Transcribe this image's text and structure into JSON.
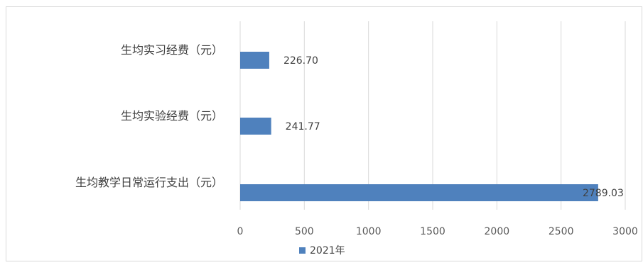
{
  "chart_data": {
    "type": "bar",
    "orientation": "horizontal",
    "categories": [
      "生均实习经费（元）",
      "生均实验经费（元）",
      "生均教学日常运行支出（元）"
    ],
    "series": [
      {
        "name": "2021年",
        "values": [
          226.7,
          241.77,
          2789.03
        ],
        "color": "#4f81bd"
      }
    ],
    "data_labels": [
      "226.70",
      "241.77",
      "2789.03"
    ],
    "xlim": [
      0,
      3000
    ],
    "xticks": [
      0,
      500,
      1000,
      1500,
      2000,
      2500,
      3000
    ],
    "grid": true,
    "legend_position": "bottom",
    "title": "",
    "xlabel": "",
    "ylabel": ""
  }
}
